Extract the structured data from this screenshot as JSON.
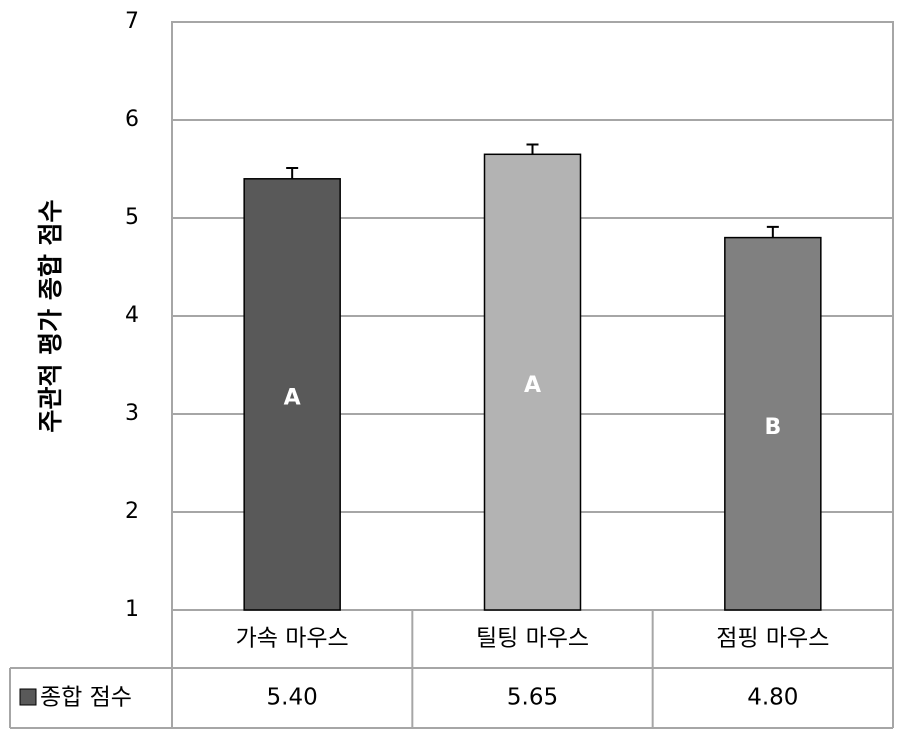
{
  "chart_data": {
    "type": "bar",
    "y_label": "주관적 평가 종합 점수",
    "categories": [
      "가속 마우스",
      "틸팅 마우스",
      "점핑 마우스"
    ],
    "series": [
      {
        "name": "종합 점수",
        "color": "#595959",
        "bar_colors": [
          "#595959",
          "#b3b3b3",
          "#808080"
        ],
        "values": [
          5.4,
          5.65,
          4.8
        ],
        "value_labels": [
          "5.40",
          "5.65",
          "4.80"
        ],
        "errors": [
          0.11,
          0.1,
          0.11
        ],
        "annotations": [
          "A",
          "A",
          "B"
        ]
      }
    ],
    "ylim": [
      1,
      7
    ],
    "yticks": [
      1,
      2,
      3,
      4,
      5,
      6,
      7
    ],
    "grid": true
  }
}
